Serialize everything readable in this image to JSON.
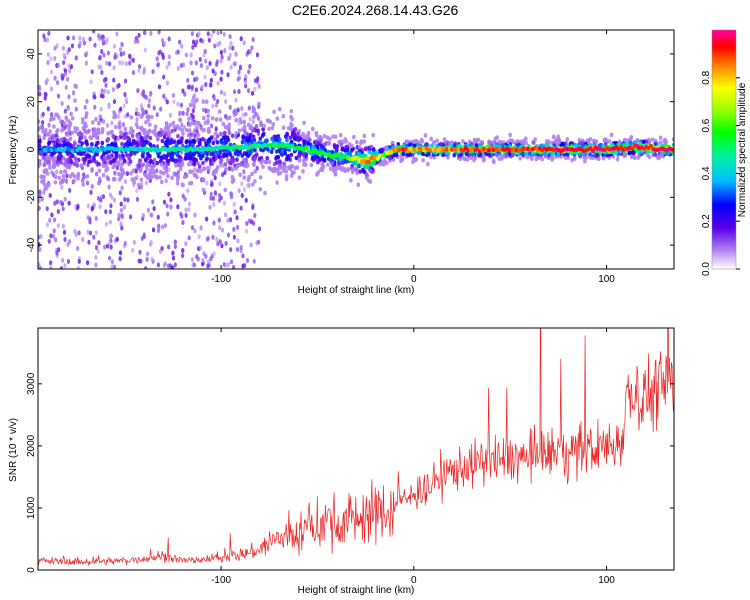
{
  "title": "C2E6.2024.268.14.43.G26",
  "colors": {
    "snr_line": "#ee2222",
    "background": "#ffffff",
    "axis": "#000000"
  },
  "chart_data": [
    {
      "type": "heatmap",
      "xlabel": "Height of straight line (km)",
      "ylabel": "Frequency (Hz)",
      "xlim": [
        -195,
        135
      ],
      "ylim": [
        -50,
        50
      ],
      "x_ticks": [
        -100,
        0,
        100
      ],
      "y_ticks": [
        -40,
        -20,
        0,
        20,
        40
      ],
      "grid": false,
      "colorbar": {
        "label": "Normalized spectral amplitude",
        "range": [
          0,
          1
        ],
        "ticks": [
          0.0,
          0.2,
          0.4,
          0.6,
          0.8
        ],
        "tick_labels": [
          "0.0",
          "0.2",
          "0.4",
          "0.6",
          "0.8"
        ],
        "colormap": "rainbow (white-violet-blue-cyan-green-yellow-red-magenta)"
      },
      "ridge": [
        {
          "x": -195,
          "freq": 0,
          "amp": 0.3
        },
        {
          "x": -150,
          "freq": 0,
          "amp": 0.35
        },
        {
          "x": -130,
          "freq": 0,
          "amp": 0.4
        },
        {
          "x": -110,
          "freq": 0,
          "amp": 0.4
        },
        {
          "x": -90,
          "freq": 1,
          "amp": 0.42
        },
        {
          "x": -75,
          "freq": 2,
          "amp": 0.45
        },
        {
          "x": -60,
          "freq": 1,
          "amp": 0.45
        },
        {
          "x": -45,
          "freq": -2,
          "amp": 0.5
        },
        {
          "x": -35,
          "freq": -3,
          "amp": 0.5
        },
        {
          "x": -25,
          "freq": -5,
          "amp": 0.85
        },
        {
          "x": -15,
          "freq": -2,
          "amp": 0.6
        },
        {
          "x": -8,
          "freq": 0,
          "amp": 0.85
        },
        {
          "x": 0,
          "freq": 0,
          "amp": 0.75
        },
        {
          "x": 20,
          "freq": 0,
          "amp": 0.8
        },
        {
          "x": 40,
          "freq": 0,
          "amp": 0.85
        },
        {
          "x": 60,
          "freq": 0,
          "amp": 0.85
        },
        {
          "x": 80,
          "freq": 0,
          "amp": 0.9
        },
        {
          "x": 100,
          "freq": 0,
          "amp": 0.9
        },
        {
          "x": 115,
          "freq": 1,
          "amp": 0.9
        },
        {
          "x": 135,
          "freq": 0,
          "amp": 0.9
        }
      ],
      "scatter_extent": {
        "x_range": [
          -195,
          -80
        ],
        "freq_range": [
          -50,
          50
        ],
        "amp": 0.1
      }
    },
    {
      "type": "line",
      "xlabel": "Height of straight line (km)",
      "ylabel": "SNR (10 * v/v)",
      "xlim": [
        -195,
        135
      ],
      "ylim": [
        0,
        3900
      ],
      "x_ticks": [
        -100,
        0,
        100
      ],
      "y_ticks": [
        0,
        1000,
        2000,
        3000
      ],
      "grid": false,
      "series": [
        {
          "x": [
            -195,
            -170,
            -150,
            -135,
            -130,
            -120,
            -110,
            -100,
            -90,
            -80,
            -75,
            -70,
            -60,
            -50,
            -45,
            -40,
            -30,
            -20,
            -10,
            -5,
            0,
            5,
            10,
            15,
            20,
            30,
            40,
            50,
            60,
            70,
            80,
            90,
            100,
            105,
            108,
            110,
            112,
            115,
            120,
            125,
            130,
            135
          ],
          "y": [
            150,
            130,
            150,
            200,
            230,
            150,
            160,
            200,
            250,
            320,
            450,
            500,
            600,
            700,
            800,
            750,
            850,
            900,
            1000,
            1150,
            1200,
            1300,
            1400,
            1500,
            1600,
            1700,
            1750,
            1800,
            1800,
            1850,
            1900,
            1950,
            2000,
            2050,
            2100,
            2800,
            2900,
            2850,
            2800,
            2900,
            2950,
            3000
          ]
        }
      ]
    }
  ]
}
